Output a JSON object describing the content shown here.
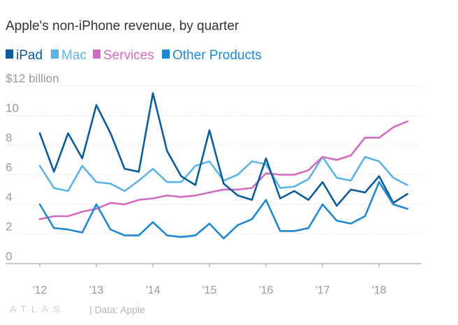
{
  "chart_data": {
    "type": "line",
    "title": "Apple's non-iPhone revenue, by quarter",
    "ylabel_unit": "billion",
    "y_ticks": [
      "$12 billion",
      "10",
      "8",
      "6",
      "4",
      "2",
      "0"
    ],
    "y_tick_values": [
      12,
      10,
      8,
      6,
      4,
      2,
      0
    ],
    "ylim": [
      0,
      12
    ],
    "x_tick_labels": [
      "'12",
      "'13",
      "'14",
      "'15",
      "'16",
      "'17",
      "'18"
    ],
    "x_tick_values": [
      2012,
      2013,
      2014,
      2015,
      2016,
      2017,
      2018
    ],
    "x": [
      2012.0,
      2012.25,
      2012.5,
      2012.75,
      2013.0,
      2013.25,
      2013.5,
      2013.75,
      2014.0,
      2014.25,
      2014.5,
      2014.75,
      2015.0,
      2015.25,
      2015.5,
      2015.75,
      2016.0,
      2016.25,
      2016.5,
      2016.75,
      2017.0,
      2017.25,
      2017.5,
      2017.75,
      2018.0,
      2018.25,
      2018.5
    ],
    "series": [
      {
        "name": "iPad",
        "color": "#0a5d9a",
        "values": [
          8.8,
          6.2,
          8.8,
          7.1,
          10.7,
          8.8,
          6.4,
          6.2,
          11.5,
          7.6,
          5.9,
          5.3,
          9.0,
          5.4,
          4.6,
          4.3,
          7.1,
          4.4,
          4.9,
          4.3,
          5.5,
          3.9,
          5.0,
          4.8,
          5.9,
          4.1,
          4.7
        ]
      },
      {
        "name": "Mac",
        "color": "#5cb3e6",
        "values": [
          6.6,
          5.1,
          4.9,
          6.6,
          5.5,
          5.4,
          4.9,
          5.6,
          6.4,
          5.5,
          5.5,
          6.6,
          6.9,
          5.6,
          6.0,
          6.9,
          6.7,
          5.1,
          5.2,
          5.7,
          7.2,
          5.8,
          5.6,
          7.2,
          6.9,
          5.8,
          5.3
        ]
      },
      {
        "name": "Services",
        "color": "#d16cc0",
        "values": [
          3.0,
          3.2,
          3.2,
          3.5,
          3.7,
          4.1,
          4.0,
          4.3,
          4.4,
          4.6,
          4.5,
          4.6,
          4.8,
          5.0,
          5.0,
          5.1,
          6.1,
          6.0,
          6.0,
          6.3,
          7.2,
          7.0,
          7.3,
          8.5,
          8.5,
          9.2,
          9.6
        ]
      },
      {
        "name": "Other Products",
        "color": "#1f88d0",
        "values": [
          4.0,
          2.4,
          2.3,
          2.1,
          4.0,
          2.3,
          1.9,
          1.9,
          2.8,
          1.9,
          1.8,
          1.9,
          2.7,
          1.7,
          2.6,
          3.0,
          4.3,
          2.2,
          2.2,
          2.4,
          4.0,
          2.9,
          2.7,
          3.2,
          5.5,
          4.0,
          3.7
        ]
      }
    ],
    "grid": true,
    "legend_placement": "top-left"
  },
  "footer": {
    "logo": "ATLAS",
    "source": "| Data: Apple"
  },
  "colors": {
    "grid": "#e2e2e2",
    "axis": "#999999"
  }
}
